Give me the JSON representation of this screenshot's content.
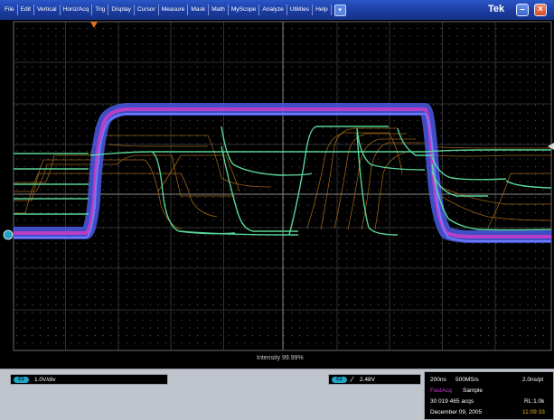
{
  "menu": {
    "items": [
      "File",
      "Edit",
      "Vertical",
      "Horiz/Acq",
      "Trig",
      "Display",
      "Cursor",
      "Measure",
      "Mask",
      "Math",
      "MyScope",
      "Analyze",
      "Utilities",
      "Help"
    ],
    "brand": "Tek"
  },
  "icons": {
    "menu_dropdown": "chevron-down-icon",
    "minimize": "minimize-icon",
    "close": "close-icon",
    "trigger_position": "trigger-marker-icon",
    "ch1_ground": "channel-ground-marker-icon",
    "trigger_level": "trigger-level-marker-icon",
    "trigger_slope": "rising-edge-icon"
  },
  "colors": {
    "ch1_badge": "#1fa4c8",
    "fastacq": "#c040c8",
    "timestamp": "#e0b020",
    "waveform_blue": "#5a6ff0",
    "waveform_magenta": "#c83cc8",
    "waveform_green": "#5ee0a0",
    "waveform_orange": "#d08a28"
  },
  "display": {
    "intensity": "Intensity 99.99%"
  },
  "status": {
    "ch1_badge": "C1",
    "ch1_scale": "1.0V/div",
    "trig_badge": "C1",
    "trig_level": "2.48V",
    "horiz_scale": "200ns",
    "sample_rate": "500MS/s",
    "time_per_point": "2.0ns/pt",
    "acq_mode": "FastAcq",
    "acq_sample": "Sample",
    "acq_count": "30 019 465 acqs",
    "record_length": "RL:1.0k",
    "date": "December 09, 2005",
    "time": "11:09:33"
  }
}
